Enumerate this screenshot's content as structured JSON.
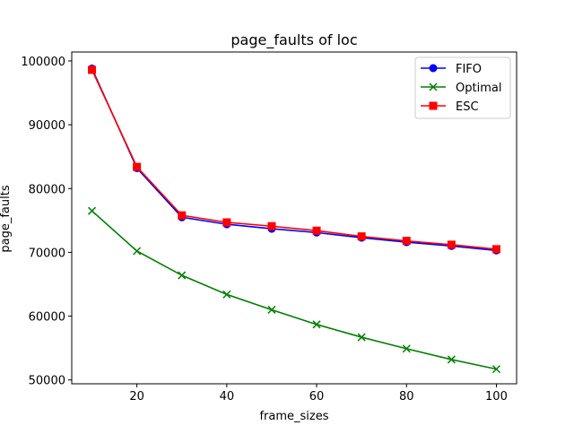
{
  "chart_data": {
    "type": "line",
    "title": "page_faults of loc",
    "xlabel": "frame_sizes",
    "ylabel": "page_faults",
    "x": [
      10,
      20,
      30,
      40,
      50,
      60,
      70,
      80,
      90,
      100
    ],
    "xlim": [
      5.5,
      104.5
    ],
    "ylim": [
      49400,
      101400
    ],
    "xticks": [
      20,
      40,
      60,
      80,
      100
    ],
    "yticks": [
      50000,
      60000,
      70000,
      80000,
      90000,
      100000
    ],
    "grid": false,
    "legend_position": "top-right",
    "series": [
      {
        "name": "FIFO",
        "color": "#0000ff",
        "marker": "circle",
        "values": [
          98800,
          83200,
          75500,
          74400,
          73700,
          73100,
          72300,
          71600,
          71000,
          70300
        ]
      },
      {
        "name": "Optimal",
        "color": "#008000",
        "marker": "x",
        "values": [
          76500,
          70200,
          66400,
          63400,
          61000,
          58700,
          56700,
          54900,
          53200,
          51700
        ]
      },
      {
        "name": "ESC",
        "color": "#ff0000",
        "marker": "square",
        "values": [
          98600,
          83400,
          75800,
          74700,
          74100,
          73400,
          72500,
          71800,
          71200,
          70500
        ]
      }
    ]
  }
}
